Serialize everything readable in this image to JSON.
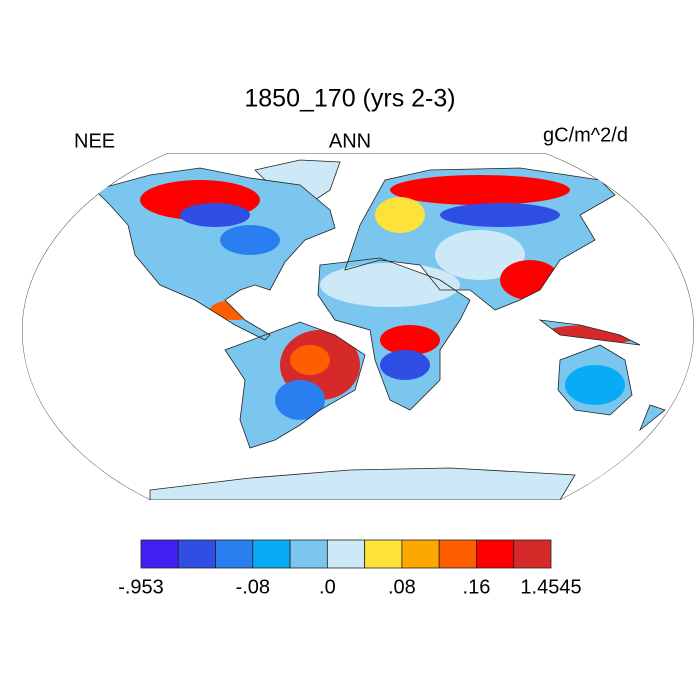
{
  "title": "1850_170 (yrs 2-3)",
  "header": {
    "left": "NEE",
    "center": "ANN",
    "right": "gC/m^2/d"
  },
  "colorbar": {
    "colors": [
      "#4020f5",
      "#2e4ee6",
      "#2a7ff0",
      "#0aabf5",
      "#7ac6ee",
      "#cde8f7",
      "#fde23a",
      "#fda800",
      "#ff5e00",
      "#ff0000",
      "#d62a2a"
    ],
    "labels": [
      "-.953",
      "-.08",
      ".0",
      ".08",
      ".16",
      "1.4545"
    ]
  }
}
